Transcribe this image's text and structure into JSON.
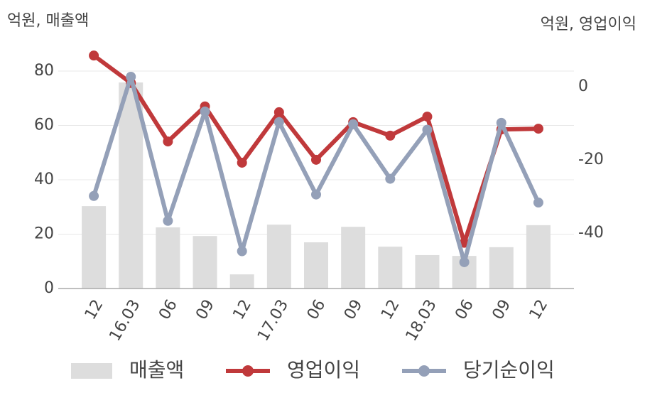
{
  "chart_data": {
    "type": "bar-line",
    "y_label": "억원, 매출액",
    "y2_label": "억원, 영업이익",
    "categories": [
      "12",
      "16.03",
      "06",
      "09",
      "12",
      "17.03",
      "06",
      "09",
      "12",
      "18.03",
      "06",
      "09",
      "12"
    ],
    "series": [
      {
        "name": "매출액",
        "type": "bar",
        "color": "#dddddd",
        "values": [
          30.3,
          75.8,
          22.5,
          19.3,
          5.2,
          23.5,
          17,
          22.7,
          15.4,
          12.3,
          12,
          15.2,
          23.3
        ]
      },
      {
        "name": "영업이익",
        "type": "line",
        "axis": "y2",
        "color": "#c0393b",
        "values": [
          8.5,
          1.0,
          -15.0,
          -5.4,
          -20.8,
          -7.0,
          -20.0,
          -9.7,
          -13.4,
          -8.2,
          -42.7,
          -11.7,
          -11.5
        ]
      },
      {
        "name": "당기순이익",
        "type": "line",
        "axis": "y2",
        "color": "#94a0b8",
        "values": [
          -29.9,
          2.7,
          -36.7,
          -6.8,
          -45.0,
          -9.7,
          -29.5,
          -10.3,
          -25.2,
          -11.8,
          -48.0,
          -9.9,
          -31.7
        ]
      }
    ],
    "ylim": [
      0,
      88
    ],
    "yticks": [
      0,
      20,
      40,
      60,
      80
    ],
    "y2lim": [
      -55.2,
      10.2
    ],
    "y2ticks": [
      0,
      -20,
      -40
    ],
    "grid": true,
    "legend": "bottom"
  }
}
